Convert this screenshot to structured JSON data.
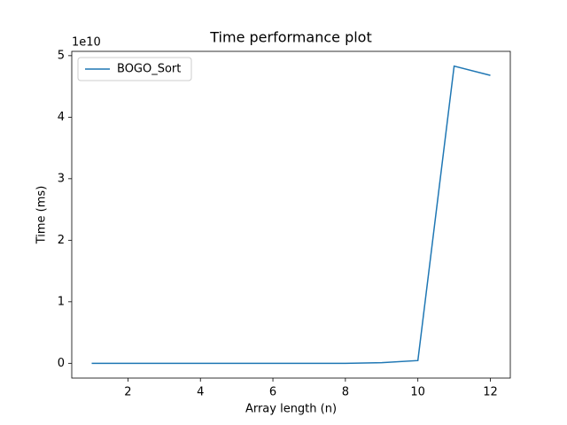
{
  "chart_data": {
    "type": "line",
    "title": "Time performance plot",
    "xlabel": "Array length (n)",
    "ylabel": "Time (ms)",
    "y_offset_label": "1e10",
    "x": [
      1,
      2,
      3,
      4,
      5,
      6,
      7,
      8,
      9,
      10,
      11,
      12
    ],
    "series": [
      {
        "name": "BOGO_Sort",
        "color": "#1f77b4",
        "values": [
          0,
          0,
          0,
          0,
          0,
          0,
          0,
          0,
          0.01,
          0.045,
          4.83,
          4.68
        ]
      }
    ],
    "xlim": [
      0.45,
      12.55
    ],
    "xticks": [
      2,
      4,
      6,
      8,
      10,
      12
    ],
    "ylim": [
      -0.24,
      5.07
    ],
    "yticks": [
      0,
      1,
      2,
      3,
      4,
      5
    ],
    "grid": false,
    "legend": "upper-left"
  }
}
